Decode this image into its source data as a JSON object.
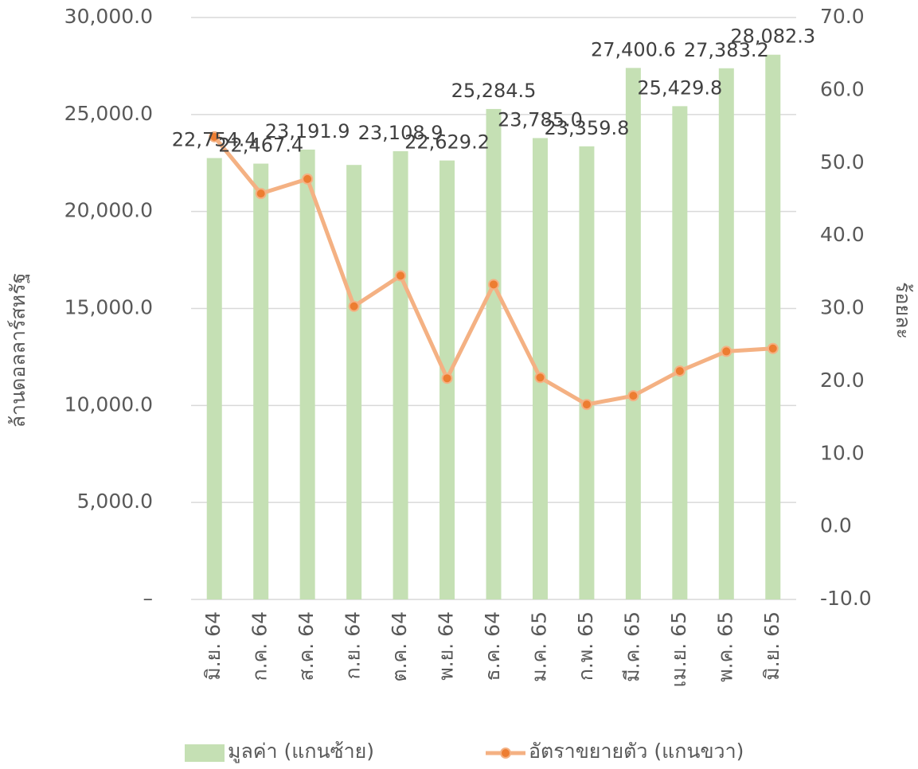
{
  "chart_data": {
    "type": "bar-line",
    "y_label": "ล้านดอลลาร์สหรัฐ",
    "y2_label": "ร้อยละ",
    "categories": [
      "มิ.ย. 64",
      "ก.ค. 64",
      "ส.ค. 64",
      "ก.ย. 64",
      "ต.ค. 64",
      "พ.ย. 64",
      "ธ.ค. 64",
      "ม.ค. 65",
      "ก.พ. 65",
      "มี.ค. 65",
      "เม.ย. 65",
      "พ.ค. 65",
      "มิ.ย. 65"
    ],
    "series": [
      {
        "name": "มูลค่า (แกนซ้าย)",
        "type": "bar",
        "color": "#c5e0b4",
        "values": [
          22754.4,
          22467.4,
          23191.9,
          22400,
          23108.9,
          22629.2,
          25284.5,
          23785.0,
          23359.8,
          27400.6,
          25429.8,
          27383.2,
          28082.3
        ],
        "value_labels": [
          "22,754.4",
          "22,467.4",
          "23,191.9",
          null,
          "23,108.9",
          "22,629.2",
          "25,284.5",
          "23,785.0",
          "23,359.8",
          "27,400.6",
          "25,429.8",
          "27,383.2",
          "28,082.3"
        ]
      },
      {
        "name": "อัตราขยายตัว (แกนขวา)",
        "type": "line",
        "axis": "y2",
        "color": "#f4b183",
        "marker_color": "#ed7d31",
        "values": [
          53.6,
          45.8,
          47.8,
          30.3,
          34.5,
          20.4,
          33.3,
          20.5,
          16.8,
          18.0,
          21.4,
          24.1,
          24.5
        ]
      }
    ],
    "ylim": [
      0,
      30000
    ],
    "yticks": [
      {
        "value": 0,
        "label": "–"
      },
      {
        "value": 5000,
        "label": "5,000.0"
      },
      {
        "value": 10000,
        "label": "10,000.0"
      },
      {
        "value": 15000,
        "label": "15,000.0"
      },
      {
        "value": 20000,
        "label": "20,000.0"
      },
      {
        "value": 25000,
        "label": "25,000.0"
      },
      {
        "value": 30000,
        "label": "30,000.0"
      }
    ],
    "y2lim": [
      -10,
      70
    ],
    "y2ticks": [
      {
        "value": -10,
        "label": "-10.0"
      },
      {
        "value": 0,
        "label": "0.0"
      },
      {
        "value": 10,
        "label": "10.0"
      },
      {
        "value": 20,
        "label": "20.0"
      },
      {
        "value": 30,
        "label": "30.0"
      },
      {
        "value": 40,
        "label": "40.0"
      },
      {
        "value": 50,
        "label": "50.0"
      },
      {
        "value": 60,
        "label": "60.0"
      },
      {
        "value": 70,
        "label": "70.0"
      }
    ],
    "grid": true,
    "legend": "bottom"
  }
}
